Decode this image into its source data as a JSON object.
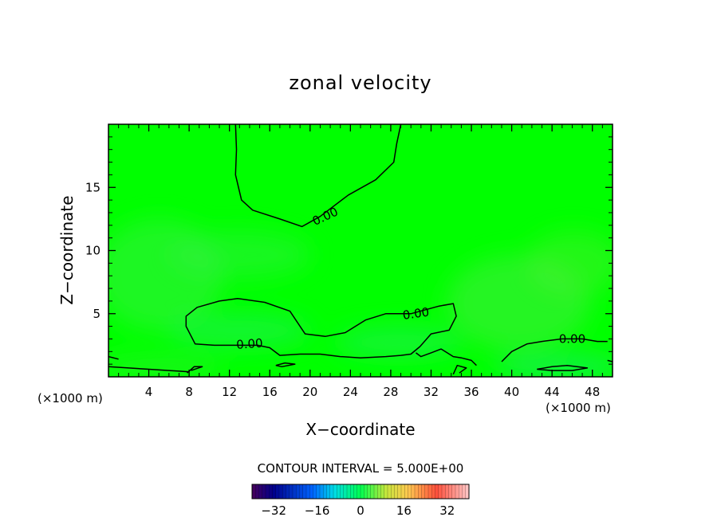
{
  "chart_data": {
    "type": "heatmap",
    "title": "zonal velocity",
    "xlabel": "X−coordinate",
    "ylabel": "Z−coordinate",
    "x_unit_left": "(×1000 m)",
    "x_unit_right": "(×1000 m)",
    "xlim": [
      0,
      50
    ],
    "ylim": [
      0,
      20
    ],
    "x_ticks": [
      4,
      8,
      12,
      16,
      20,
      24,
      28,
      32,
      36,
      40,
      44,
      48
    ],
    "y_ticks": [
      5,
      10,
      15
    ],
    "grid": false,
    "field_description_value_range": [
      -36,
      36
    ],
    "contour_labels": [
      {
        "text": "0.00",
        "x": 21.5,
        "y": 12.7
      },
      {
        "text": "0.00",
        "x": 30.5,
        "y": 5.0
      },
      {
        "text": "0.00",
        "x": 14.0,
        "y": 2.6
      },
      {
        "text": "0.00",
        "x": 46.0,
        "y": 3.0
      }
    ],
    "contours": [
      {
        "level": 0.0,
        "points": [
          [
            12.6,
            20
          ],
          [
            12.7,
            18
          ],
          [
            12.6,
            16
          ],
          [
            13.2,
            14
          ],
          [
            14.3,
            13.2
          ],
          [
            17,
            12.5
          ],
          [
            19.2,
            11.9
          ],
          [
            21,
            12.7
          ],
          [
            23.8,
            14.4
          ],
          [
            26.5,
            15.6
          ],
          [
            28.3,
            17
          ],
          [
            28.6,
            18.5
          ],
          [
            29,
            20
          ]
        ]
      },
      {
        "level": 0.0,
        "points": [
          [
            10.5,
            2.5
          ],
          [
            8.6,
            2.6
          ],
          [
            7.7,
            4.0
          ],
          [
            7.7,
            4.8
          ],
          [
            8.8,
            5.5
          ],
          [
            11,
            6.0
          ],
          [
            12.8,
            6.2
          ],
          [
            15.5,
            5.9
          ],
          [
            18,
            5.2
          ],
          [
            19.5,
            3.4
          ],
          [
            21.5,
            3.2
          ],
          [
            23.5,
            3.5
          ],
          [
            25.5,
            4.5
          ],
          [
            27.5,
            5.0
          ],
          [
            30,
            5.0
          ],
          [
            32.8,
            5.6
          ],
          [
            34.2,
            5.8
          ],
          [
            34.5,
            4.8
          ],
          [
            33.8,
            3.7
          ],
          [
            32,
            3.4
          ],
          [
            30.9,
            2.4
          ],
          [
            30,
            1.8
          ],
          [
            29,
            1.7
          ],
          [
            27.5,
            1.6
          ],
          [
            25,
            1.5
          ],
          [
            23,
            1.6
          ],
          [
            21,
            1.8
          ],
          [
            19,
            1.8
          ],
          [
            17,
            1.7
          ],
          [
            16,
            2.3
          ],
          [
            14.8,
            2.5
          ],
          [
            12,
            2.5
          ],
          [
            10.5,
            2.5
          ]
        ]
      },
      {
        "level": 0.0,
        "points": [
          [
            0,
            1.6
          ],
          [
            1,
            1.4
          ]
        ]
      },
      {
        "level": 0.0,
        "points": [
          [
            0,
            0.8
          ],
          [
            2,
            0.7
          ],
          [
            4,
            0.6
          ],
          [
            6,
            0.5
          ],
          [
            7,
            0.45
          ],
          [
            8,
            0.4
          ]
        ]
      },
      {
        "level": 0.0,
        "points": [
          [
            7.8,
            0.3
          ],
          [
            8.5,
            0.8
          ],
          [
            9.3,
            0.8
          ],
          [
            8.2,
            0.5
          ]
        ]
      },
      {
        "level": 0.0,
        "points": [
          [
            16.6,
            0.9
          ],
          [
            17.5,
            1.1
          ],
          [
            18.5,
            1.0
          ],
          [
            17.2,
            0.8
          ],
          [
            16.6,
            0.9
          ]
        ]
      },
      {
        "level": 0.0,
        "points": [
          [
            30.5,
            1.9
          ],
          [
            31,
            1.6
          ],
          [
            32,
            1.9
          ],
          [
            33,
            2.2
          ],
          [
            34.2,
            1.6
          ],
          [
            35,
            1.5
          ],
          [
            36,
            1.3
          ],
          [
            36.5,
            0.9
          ]
        ]
      },
      {
        "level": 0.0,
        "points": [
          [
            39,
            1.2
          ],
          [
            40,
            2.0
          ],
          [
            41.5,
            2.6
          ],
          [
            43,
            2.8
          ],
          [
            45,
            3.0
          ],
          [
            47,
            3.0
          ],
          [
            48.5,
            2.8
          ],
          [
            49.5,
            2.8
          ]
        ]
      },
      {
        "level": 0.0,
        "points": [
          [
            34.2,
            0.2
          ],
          [
            34.6,
            0.9
          ],
          [
            35.5,
            0.7
          ],
          [
            34.8,
            0.3
          ]
        ]
      },
      {
        "level": 0.0,
        "points": [
          [
            42.5,
            0.6
          ],
          [
            44,
            0.8
          ],
          [
            45.5,
            0.9
          ],
          [
            47.5,
            0.7
          ],
          [
            46,
            0.5
          ],
          [
            44,
            0.5
          ],
          [
            42.5,
            0.6
          ]
        ]
      },
      {
        "level": 0.0,
        "points": [
          [
            49.5,
            1.3
          ],
          [
            50,
            1.2
          ]
        ]
      }
    ]
  },
  "footer": {
    "contour_interval_text": "CONTOUR INTERVAL = 5.000E+00"
  },
  "colorbar": {
    "tick_labels": [
      "−32",
      "−16",
      "0",
      "16",
      "32"
    ],
    "tick_values": [
      -32,
      -16,
      0,
      16,
      32
    ],
    "range": [
      -40,
      40
    ],
    "num_bins": 64
  },
  "colors": {
    "field_base": "#00ff00",
    "contour_line": "#000000"
  }
}
